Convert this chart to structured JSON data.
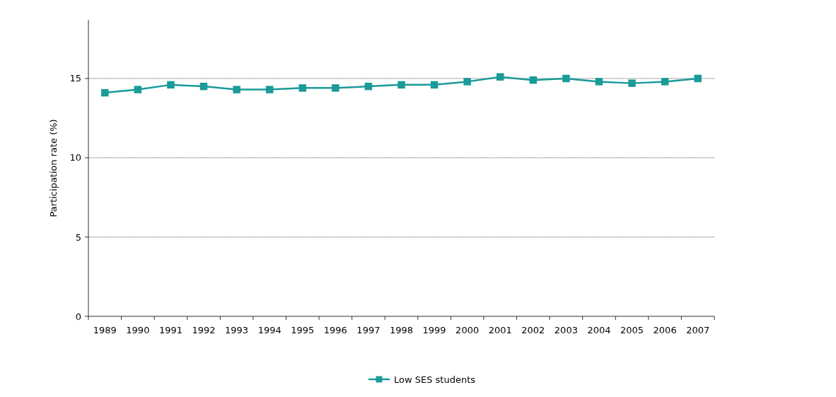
{
  "chart_data": {
    "type": "line",
    "ylabel": "Participation rate (%)",
    "categories": [
      "1989",
      "1990",
      "1991",
      "1992",
      "1993",
      "1994",
      "1995",
      "1996",
      "1997",
      "1998",
      "1999",
      "2000",
      "2001",
      "2002",
      "2003",
      "2004",
      "2005",
      "2006",
      "2007"
    ],
    "series": [
      {
        "name": "Low SES students",
        "color": "#1a9a98",
        "values": [
          14.1,
          14.3,
          14.6,
          14.5,
          14.3,
          14.3,
          14.4,
          14.4,
          14.5,
          14.6,
          14.6,
          14.8,
          15.1,
          14.9,
          15.0,
          14.8,
          14.7,
          14.8,
          15.0
        ]
      }
    ],
    "ylim": [
      0,
      18.7
    ],
    "yticks": [
      0,
      5,
      10,
      15
    ],
    "grid": "y",
    "legend": "bottom",
    "marker": "square",
    "line_style": "solid"
  }
}
